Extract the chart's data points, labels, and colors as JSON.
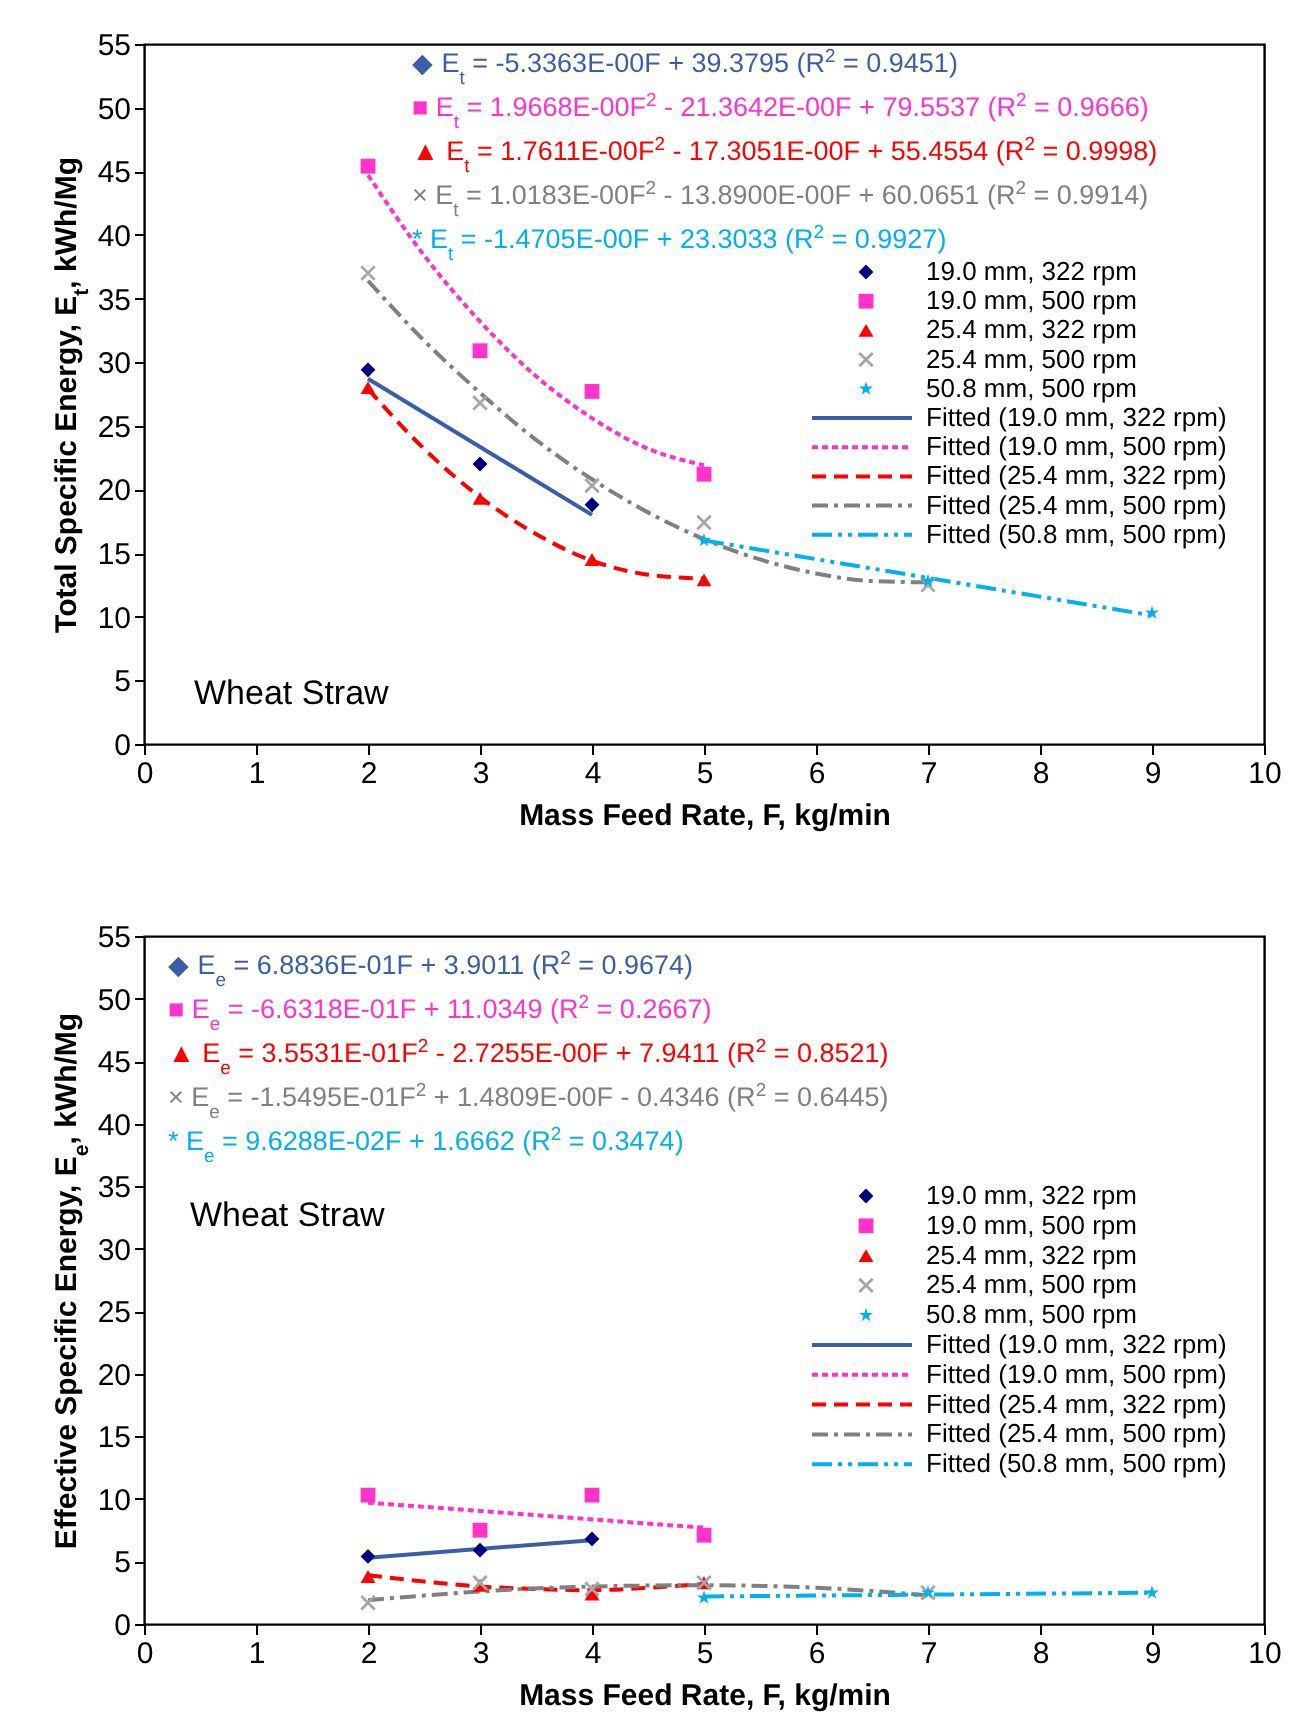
{
  "chart_data": [
    {
      "type": "scatter",
      "xlabel": "Mass Feed Rate, F, kg/min",
      "ylabel": "Total Specific Energy, E$_{t}$, kWh/Mg",
      "xlim": [
        0,
        10
      ],
      "xticks": [
        0,
        1,
        2,
        3,
        4,
        5,
        6,
        7,
        8,
        9,
        10
      ],
      "ylim": [
        0,
        55
      ],
      "yticks": [
        0,
        5,
        10,
        15,
        20,
        25,
        30,
        35,
        40,
        45,
        50,
        55
      ],
      "legend": "right",
      "annotations": [
        "◆ E$_{t}$ = -5.3363E-00F + 39.3795 (R$^{2}$ = 0.9451)",
        "■ E$_{t}$ = 1.9668E-00F$^{2}$ - 21.3642E-00F + 79.5537 (R$^{2}$ = 0.9666)",
        "▲ E$_{t}$ = 1.7611E-00F$^{2}$ - 17.3051E-00F + 55.4554 (R$^{2}$ = 0.9998)",
        "× E$_{t}$ = 1.0183E-00F$^{2}$ - 13.8900E-00F + 60.0651 (R$^{2}$ = 0.9914)",
        "* E$_{t}$ = -1.4705E-00F + 23.3033 (R$^{2}$ = 0.9927)",
        "Wheat Straw"
      ],
      "series": [
        {
          "name": "19.0 mm, 322 rpm",
          "type": "scatter",
          "marker": "diamond",
          "color": "#000080",
          "x": [
            2,
            3,
            4
          ],
          "values": [
            29.4,
            22.0,
            18.8
          ]
        },
        {
          "name": "19.0 mm, 500 rpm",
          "type": "scatter",
          "marker": "square",
          "color": "#ff33cc",
          "x": [
            2,
            3,
            4,
            5
          ],
          "values": [
            45.4,
            30.9,
            27.7,
            21.2
          ]
        },
        {
          "name": "25.4 mm, 322 rpm",
          "type": "scatter",
          "marker": "triangle",
          "color": "#ff0000",
          "x": [
            2,
            3,
            4,
            5
          ],
          "values": [
            28.0,
            19.3,
            14.5,
            12.9
          ]
        },
        {
          "name": "25.4 mm, 500 rpm",
          "type": "scatter",
          "marker": "cross",
          "color": "#a6a6a6",
          "x": [
            2,
            3,
            4,
            5,
            7
          ],
          "values": [
            37.0,
            26.8,
            20.3,
            17.4,
            12.5
          ]
        },
        {
          "name": "50.8 mm, 500 rpm",
          "type": "scatter",
          "marker": "star",
          "color": "#00b0f0",
          "x": [
            5,
            7,
            9
          ],
          "values": [
            16.0,
            12.8,
            10.3
          ]
        },
        {
          "name": "Fitted (19.0 mm, 322 rpm)",
          "type": "line",
          "marker": "none",
          "line_style": "solid",
          "color": "#3b5ea8",
          "x": [
            2,
            4
          ],
          "values": [
            28.7,
            18.0
          ]
        },
        {
          "name": "Fitted (19.0 mm, 500 rpm)",
          "type": "line",
          "marker": "none",
          "line_style": "dotted",
          "color": "#ff33cc",
          "x": [
            2,
            2.5,
            3,
            3.5,
            4,
            4.5,
            5
          ],
          "values": [
            44.7,
            38.4,
            33.2,
            28.9,
            25.6,
            23.2,
            21.9
          ]
        },
        {
          "name": "Fitted (25.4 mm, 322 rpm)",
          "type": "line",
          "marker": "none",
          "line_style": "dashed",
          "color": "#ff0000",
          "x": [
            2,
            2.5,
            3,
            3.5,
            4,
            4.5,
            5
          ],
          "values": [
            27.9,
            23.2,
            19.4,
            16.5,
            14.4,
            13.3,
            13.0
          ]
        },
        {
          "name": "Fitted (25.4 mm, 500 rpm)",
          "type": "line",
          "marker": "none",
          "line_style": "dashdot",
          "color": "#808080",
          "x": [
            2,
            2.5,
            3,
            3.5,
            4,
            4.5,
            5,
            5.5,
            6,
            6.5,
            7
          ],
          "values": [
            36.4,
            31.7,
            27.6,
            23.9,
            20.8,
            18.2,
            16.1,
            14.5,
            13.4,
            12.8,
            12.7
          ]
        },
        {
          "name": "Fitted (50.8 mm, 500 rpm)",
          "type": "line",
          "marker": "none",
          "line_style": "dashdotdot",
          "color": "#00b0f0",
          "x": [
            5,
            9
          ],
          "values": [
            16.0,
            10.1
          ]
        }
      ]
    },
    {
      "type": "scatter",
      "xlabel": "Mass Feed Rate, F, kg/min",
      "ylabel": "Effective Specific Energy, E$_{e}$, kWh/Mg",
      "xlim": [
        0,
        10
      ],
      "xticks": [
        0,
        1,
        2,
        3,
        4,
        5,
        6,
        7,
        8,
        9,
        10
      ],
      "ylim": [
        0,
        55
      ],
      "yticks": [
        0,
        5,
        10,
        15,
        20,
        25,
        30,
        35,
        40,
        45,
        50,
        55
      ],
      "legend": "right",
      "annotations": [
        "◆ E$_{e}$ = 6.8836E-01F + 3.9011 (R$^{2}$ = 0.9674)",
        "■ E$_{e}$ = -6.6318E-01F + 11.0349 (R$^{2}$ = 0.2667)",
        "▲ E$_{e}$ = 3.5531E-01F$^{2}$ - 2.7255E-00F + 7.9411 (R$^{2}$ = 0.8521)",
        "× E$_{e}$ = -1.5495E-01F$^{2}$ + 1.4809E-00F - 0.4346 (R$^{2}$ = 0.6445)",
        "* E$_{e}$ = 9.6288E-02F + 1.6662 (R$^{2}$ = 0.3474)",
        "Wheat Straw"
      ],
      "series": [
        {
          "name": "19.0 mm, 322 rpm",
          "type": "scatter",
          "marker": "diamond",
          "color": "#000080",
          "x": [
            2,
            3,
            4
          ],
          "values": [
            5.4,
            5.9,
            6.8
          ]
        },
        {
          "name": "19.0 mm, 500 rpm",
          "type": "scatter",
          "marker": "square",
          "color": "#ff33cc",
          "x": [
            2,
            3,
            4,
            5
          ],
          "values": [
            10.3,
            7.5,
            10.3,
            7.1
          ]
        },
        {
          "name": "25.4 mm, 322 rpm",
          "type": "scatter",
          "marker": "triangle",
          "color": "#ff0000",
          "x": [
            2,
            3,
            4,
            5
          ],
          "values": [
            3.8,
            3.1,
            2.4,
            3.3
          ]
        },
        {
          "name": "25.4 mm, 500 rpm",
          "type": "scatter",
          "marker": "cross",
          "color": "#a6a6a6",
          "x": [
            2,
            3,
            4,
            5,
            7
          ],
          "values": [
            1.7,
            3.3,
            2.8,
            3.3,
            2.5
          ]
        },
        {
          "name": "50.8 mm, 500 rpm",
          "type": "scatter",
          "marker": "star",
          "color": "#00b0f0",
          "x": [
            5,
            7,
            9
          ],
          "values": [
            2.1,
            2.5,
            2.5
          ]
        },
        {
          "name": "Fitted (19.0 mm, 322 rpm)",
          "type": "line",
          "marker": "none",
          "line_style": "solid",
          "color": "#3b5ea8",
          "x": [
            2,
            4
          ],
          "values": [
            5.3,
            6.7
          ]
        },
        {
          "name": "Fitted (19.0 mm, 500 rpm)",
          "type": "line",
          "marker": "none",
          "line_style": "dotted",
          "color": "#ff33cc",
          "x": [
            2,
            5
          ],
          "values": [
            9.7,
            7.7
          ]
        },
        {
          "name": "Fitted (25.4 mm, 322 rpm)",
          "type": "line",
          "marker": "none",
          "line_style": "dashed",
          "color": "#ff0000",
          "x": [
            2,
            2.5,
            3,
            3.5,
            4,
            4.5,
            5
          ],
          "values": [
            3.9,
            3.4,
            3.0,
            2.8,
            2.7,
            2.9,
            3.2
          ]
        },
        {
          "name": "Fitted (25.4 mm, 500 rpm)",
          "type": "line",
          "marker": "none",
          "line_style": "dashdot",
          "color": "#808080",
          "x": [
            2,
            3,
            4,
            5,
            6,
            7
          ],
          "values": [
            1.9,
            2.6,
            3.0,
            3.1,
            2.9,
            2.3
          ]
        },
        {
          "name": "Fitted (50.8 mm, 500 rpm)",
          "type": "line",
          "marker": "none",
          "line_style": "dashdotdot",
          "color": "#00b0f0",
          "x": [
            5,
            9
          ],
          "values": [
            2.2,
            2.5
          ]
        }
      ]
    }
  ]
}
